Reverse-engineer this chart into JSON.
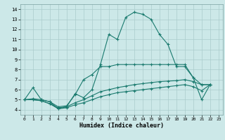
{
  "xlabel": "Humidex (Indice chaleur)",
  "xlim": [
    -0.5,
    23.5
  ],
  "ylim": [
    3.5,
    14.5
  ],
  "xticks": [
    0,
    1,
    2,
    3,
    4,
    5,
    6,
    7,
    8,
    9,
    10,
    11,
    12,
    13,
    14,
    15,
    16,
    17,
    18,
    19,
    20,
    21,
    22,
    23
  ],
  "yticks": [
    4,
    5,
    6,
    7,
    8,
    9,
    10,
    11,
    12,
    13,
    14
  ],
  "line_color": "#1a7a6e",
  "bg_color": "#cce8e8",
  "grid_color": "#aacccc",
  "x_vals": [
    0,
    1,
    2,
    3,
    4,
    5,
    6,
    7,
    8,
    9,
    10,
    11,
    12,
    13,
    14,
    15,
    16,
    17,
    18,
    19,
    20,
    21,
    22
  ],
  "series": [
    [
      5.0,
      6.2,
      5.0,
      4.8,
      4.1,
      4.3,
      5.6,
      5.2,
      6.0,
      8.5,
      11.5,
      11.0,
      13.2,
      13.7,
      13.5,
      13.0,
      11.5,
      10.5,
      8.3,
      8.3,
      7.2,
      5.0,
      6.5
    ],
    [
      5.0,
      5.1,
      5.0,
      4.8,
      4.3,
      4.4,
      5.5,
      7.0,
      7.5,
      8.3,
      8.3,
      8.5,
      8.5,
      8.5,
      8.5,
      8.5,
      8.5,
      8.5,
      8.5,
      8.5,
      7.2,
      6.5,
      6.5
    ],
    [
      5.0,
      5.0,
      4.9,
      4.6,
      4.2,
      4.3,
      4.7,
      5.0,
      5.4,
      5.8,
      6.0,
      6.2,
      6.35,
      6.5,
      6.6,
      6.7,
      6.8,
      6.85,
      6.9,
      7.0,
      6.8,
      6.5,
      6.5
    ],
    [
      5.0,
      5.0,
      4.9,
      4.6,
      4.1,
      4.2,
      4.5,
      4.7,
      5.0,
      5.3,
      5.5,
      5.7,
      5.8,
      5.9,
      6.0,
      6.1,
      6.2,
      6.3,
      6.4,
      6.5,
      6.3,
      5.9,
      6.5
    ]
  ]
}
